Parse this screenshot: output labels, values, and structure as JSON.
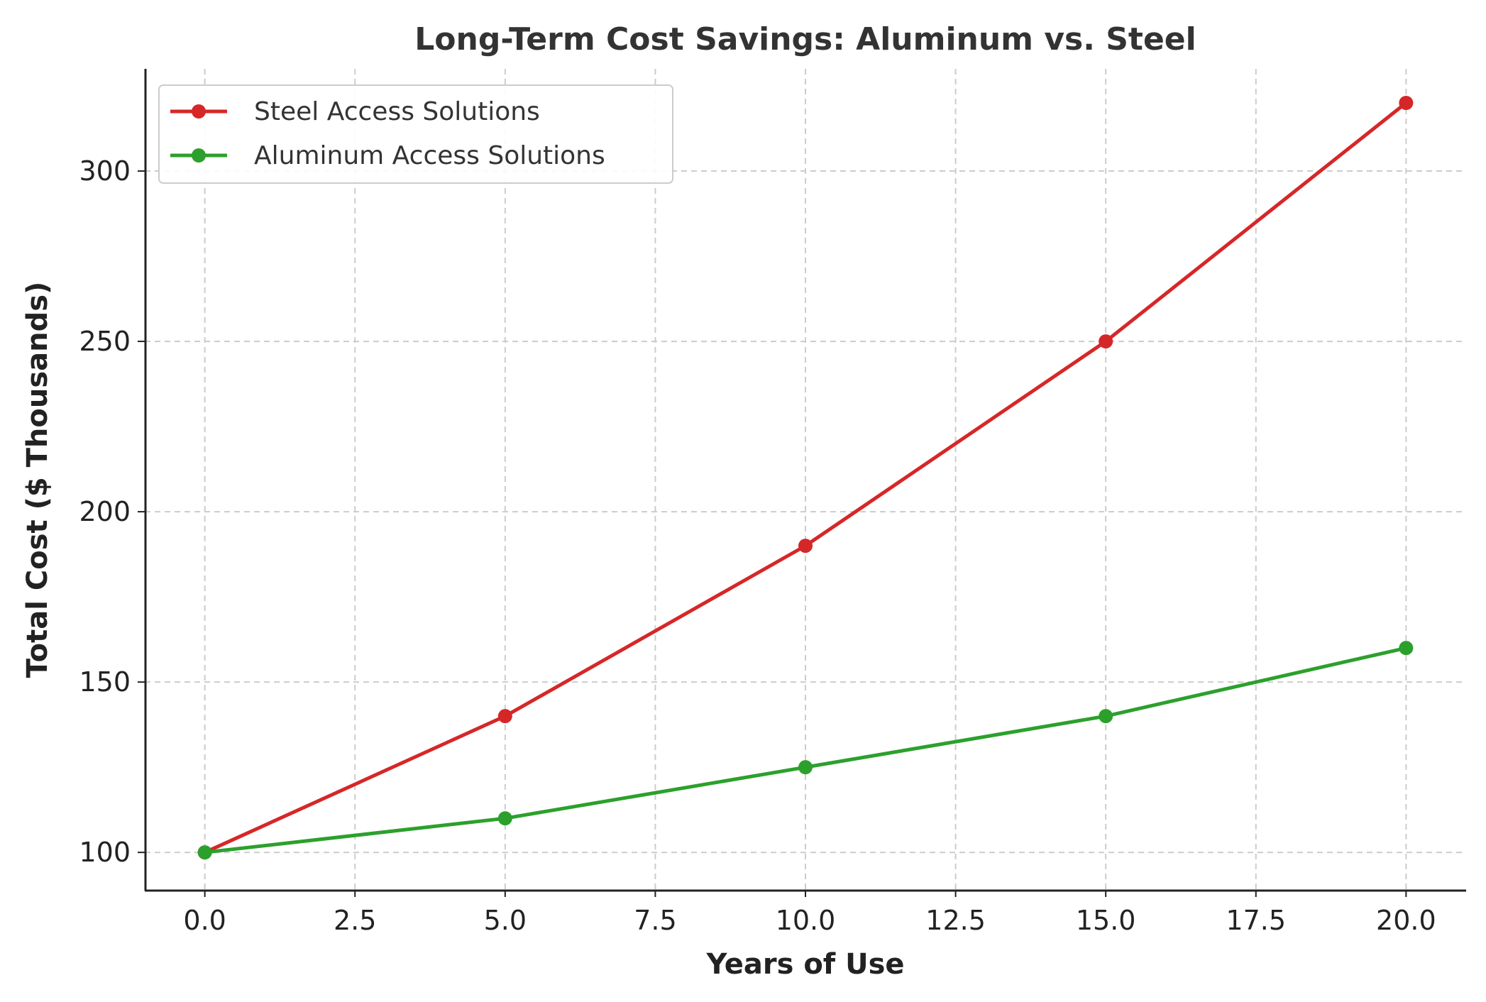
{
  "chart_data": {
    "type": "line",
    "title": "Long-Term Cost Savings: Aluminum vs. Steel",
    "xlabel": "Years of Use",
    "ylabel": "Total Cost ($ Thousands)",
    "x": [
      0,
      5,
      10,
      15,
      20
    ],
    "xlim": [
      -1,
      21
    ],
    "ylim": [
      89,
      330
    ],
    "xticks": [
      "0.0",
      "2.5",
      "5.0",
      "7.5",
      "10.0",
      "12.5",
      "15.0",
      "17.5",
      "20.0"
    ],
    "yticks": [
      "100",
      "150",
      "200",
      "250",
      "300"
    ],
    "grid": true,
    "legend_position": "top-left",
    "series": [
      {
        "name": "Steel Access Solutions",
        "color": "#d62728",
        "values": [
          100,
          140,
          190,
          250,
          320
        ]
      },
      {
        "name": "Aluminum Access Solutions",
        "color": "#2ca02c",
        "values": [
          100,
          110,
          125,
          140,
          160
        ]
      }
    ]
  }
}
